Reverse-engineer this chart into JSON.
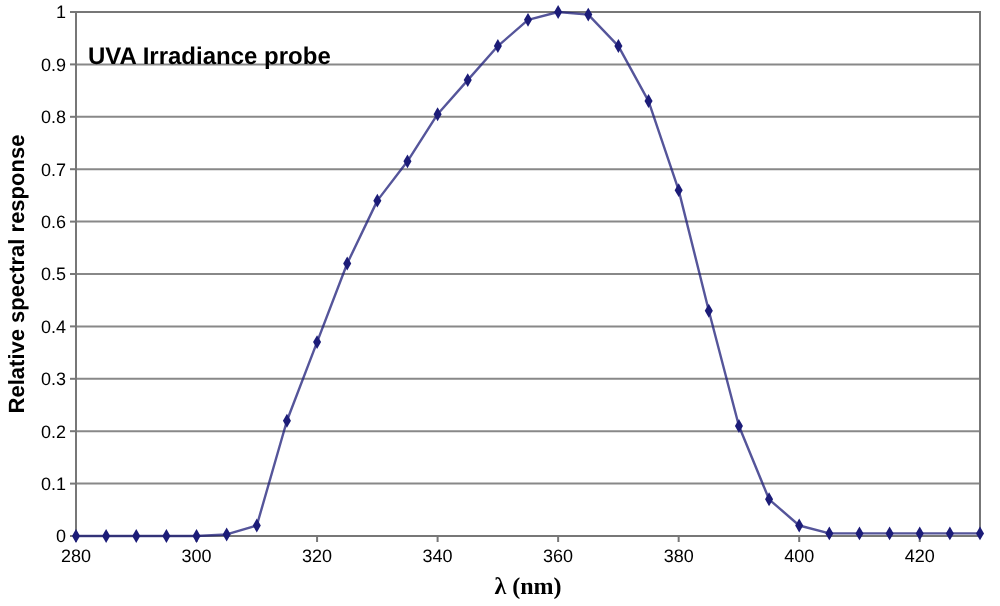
{
  "chart_data": {
    "type": "line",
    "title": "UVA Irradiance probe",
    "xlabel": "λ (nm)",
    "ylabel": "Relative spectral response",
    "x": [
      280,
      285,
      290,
      295,
      300,
      305,
      310,
      315,
      320,
      325,
      330,
      335,
      340,
      345,
      350,
      355,
      360,
      365,
      370,
      375,
      380,
      385,
      390,
      395,
      400,
      405,
      410,
      415,
      420,
      425,
      430
    ],
    "series": [
      {
        "color": "#1c1c78",
        "values": [
          0,
          0,
          0,
          0,
          0,
          0.003,
          0.02,
          0.22,
          0.37,
          0.52,
          0.64,
          0.715,
          0.805,
          0.87,
          0.935,
          0.985,
          1.0,
          0.995,
          0.935,
          0.83,
          0.66,
          0.43,
          0.21,
          0.07,
          0.02,
          0.005,
          0.005,
          0.005,
          0.005,
          0.005,
          0.005
        ]
      }
    ],
    "xlim": [
      280,
      430
    ],
    "xticks": [
      280,
      300,
      320,
      340,
      360,
      380,
      400,
      420
    ],
    "ylim": [
      0,
      1
    ],
    "yticks": [
      0,
      0.1,
      0.2,
      0.3,
      0.4,
      0.5,
      0.6,
      0.7,
      0.8,
      0.9,
      1
    ],
    "grid": "y",
    "marker": "diamond",
    "line_style": "solid"
  }
}
